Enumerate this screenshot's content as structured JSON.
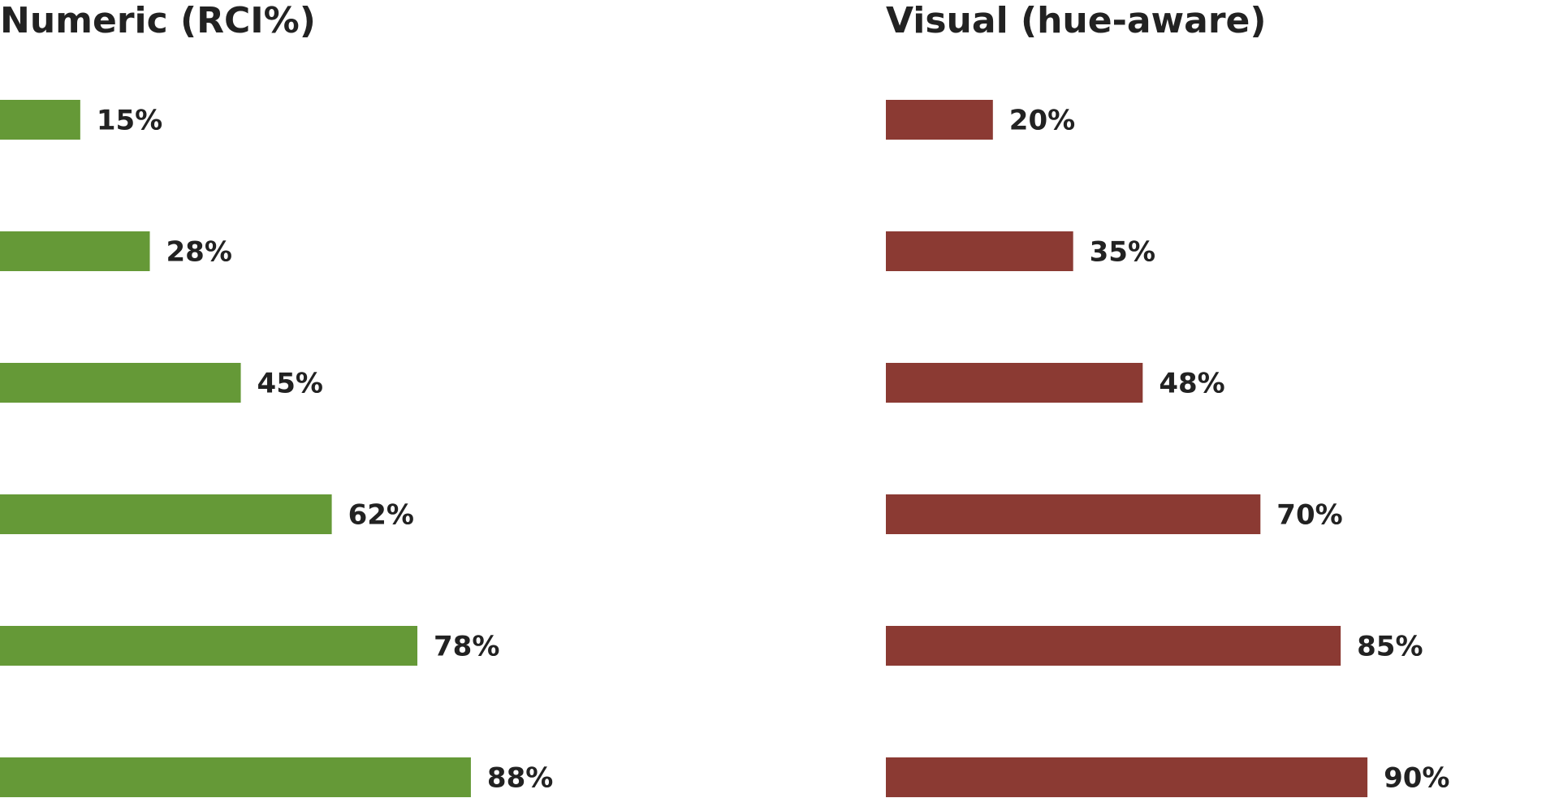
{
  "chart_data": [
    {
      "type": "bar",
      "orientation": "horizontal",
      "title": "Numeric (RCI%)",
      "color": "#659937",
      "unit": "%",
      "values": [
        15,
        28,
        45,
        62,
        78,
        88
      ],
      "labels": [
        "15%",
        "28%",
        "45%",
        "62%",
        "78%",
        "88%"
      ],
      "xlim": [
        0,
        100
      ],
      "grid": false,
      "legend": "none"
    },
    {
      "type": "bar",
      "orientation": "horizontal",
      "title": "Visual (hue-aware)",
      "color": "#8b3a33",
      "unit": "%",
      "values": [
        20,
        35,
        48,
        70,
        85,
        90
      ],
      "labels": [
        "20%",
        "35%",
        "48%",
        "70%",
        "85%",
        "90%"
      ],
      "xlim": [
        0,
        100
      ],
      "grid": false,
      "legend": "none"
    }
  ]
}
